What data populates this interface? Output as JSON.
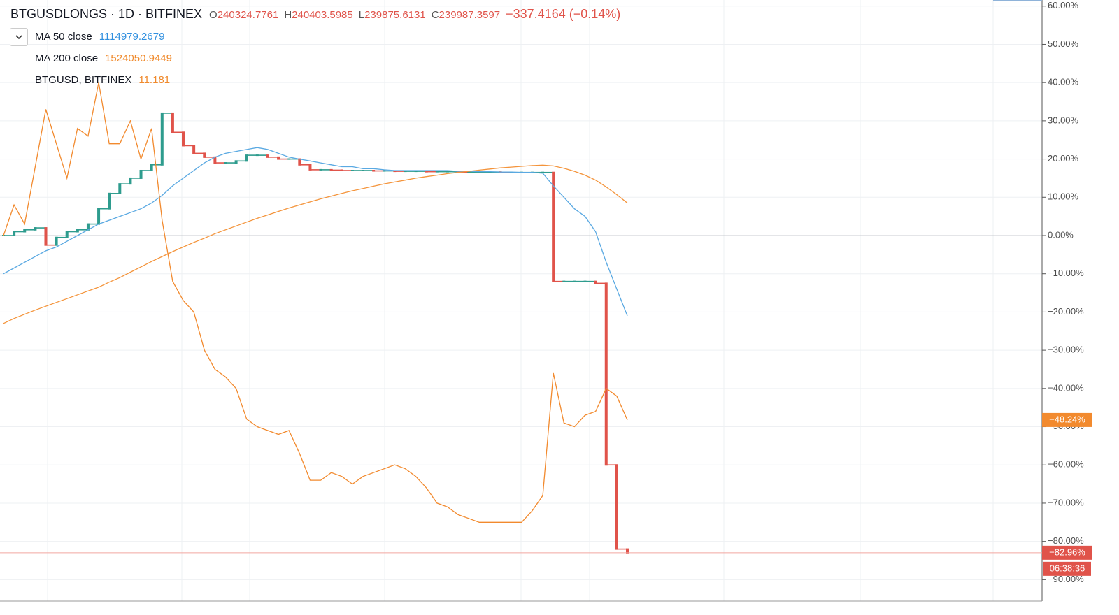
{
  "chart_data": {
    "type": "line",
    "title": "BTGUSDLONGS · 1D · BITFINEX",
    "ohlc": [
      {
        "label": "O",
        "value": "240324.7761"
      },
      {
        "label": "H",
        "value": "240403.5985"
      },
      {
        "label": "L",
        "value": "239875.6131"
      },
      {
        "label": "C",
        "value": "239987.3597"
      }
    ],
    "change": "−337.4164 (−0.14%)",
    "ylim": [
      -95.6,
      61.6
    ],
    "yticks": [
      {
        "value": 60,
        "label": "60.00%"
      },
      {
        "value": 50,
        "label": "50.00%"
      },
      {
        "value": 40,
        "label": "40.00%"
      },
      {
        "value": 30,
        "label": "30.00%"
      },
      {
        "value": 20,
        "label": "20.00%"
      },
      {
        "value": 10,
        "label": "10.00%"
      },
      {
        "value": 0,
        "label": "0.00%"
      },
      {
        "value": -10,
        "label": "−10.00%"
      },
      {
        "value": -20,
        "label": "−20.00%"
      },
      {
        "value": -30,
        "label": "−30.00%"
      },
      {
        "value": -40,
        "label": "−40.00%"
      },
      {
        "value": -50,
        "label": "−50.00%"
      },
      {
        "value": -60,
        "label": "−60.00%"
      },
      {
        "value": -70,
        "label": "−70.00%"
      },
      {
        "value": -80,
        "label": "−80.00%"
      },
      {
        "value": -90,
        "label": "−90.00%"
      }
    ],
    "grid": true,
    "series": [
      {
        "style": "candles",
        "up_color": "#2e9c8e",
        "down_color": "#e0534a",
        "tag": "−82.96%",
        "timer": "06:38:36",
        "values": [
          0,
          1,
          1.5,
          2,
          -2.5,
          -0.5,
          1,
          1.5,
          3,
          7,
          11,
          13.5,
          15,
          17,
          18.5,
          32,
          27,
          23.5,
          21.5,
          20.5,
          19,
          19,
          19.5,
          21,
          21,
          20.5,
          20,
          20,
          18.5,
          17.2,
          17.2,
          17.1,
          17,
          17,
          17,
          16.9,
          16.9,
          16.8,
          16.8,
          16.8,
          16.7,
          16.7,
          16.7,
          16.6,
          16.6,
          16.6,
          16.6,
          16.5,
          16.5,
          16.5,
          16.5,
          16.5,
          -12,
          -12,
          -12,
          -12,
          -12.5,
          -60,
          -82,
          -82.96
        ]
      },
      {
        "style": "line",
        "name": "MA 50 close",
        "legend_value": "1114979.2679",
        "color": "#5aa9e2",
        "legend_color": "#2f8fdf",
        "values": [
          -10,
          -8.5,
          -7,
          -5.5,
          -4,
          -3,
          -1.5,
          0,
          1.5,
          3,
          4,
          5,
          6,
          7,
          8.5,
          10.5,
          13,
          15,
          17,
          19,
          20.5,
          21.5,
          22,
          22.5,
          23,
          22.5,
          21.5,
          20.5,
          20,
          19.5,
          19,
          18.5,
          18,
          18,
          17.5,
          17.5,
          17.2,
          17,
          17,
          17,
          17,
          17,
          17,
          16.8,
          16.8,
          16.7,
          16.7,
          16.6,
          16.6,
          16.5,
          16.5,
          16.3,
          13,
          10,
          7,
          5,
          1,
          -7,
          -14,
          -21
        ]
      },
      {
        "style": "line",
        "name": "MA 200 close",
        "legend_value": "1524050.9449",
        "color": "#f4943b",
        "legend_color": "#f08a2c",
        "values": [
          -23,
          -21.7,
          -20.6,
          -19.5,
          -18.5,
          -17.5,
          -16.5,
          -15.5,
          -14.5,
          -13.5,
          -12.2,
          -11,
          -9.6,
          -8.2,
          -6.8,
          -5.5,
          -4.2,
          -3,
          -1.8,
          -0.7,
          0.5,
          1.5,
          2.5,
          3.5,
          4.5,
          5.4,
          6.3,
          7.2,
          8,
          8.8,
          9.6,
          10.3,
          11,
          11.7,
          12.3,
          12.9,
          13.5,
          14,
          14.5,
          15,
          15.4,
          15.8,
          16.2,
          16.5,
          16.8,
          17.1,
          17.4,
          17.7,
          17.9,
          18.1,
          18.3,
          18.4,
          18.2,
          17.6,
          16.8,
          15.8,
          14.5,
          12.7,
          10.7,
          8.5
        ]
      },
      {
        "style": "line",
        "name": "BTGUSD, BITFINEX",
        "legend_value": "11.181",
        "color": "#f28a2e",
        "legend_color": "#f08a2c",
        "tag": "−48.24%",
        "values": [
          0,
          8,
          3,
          18,
          33,
          24,
          15,
          28,
          26,
          40,
          24,
          24,
          30,
          20,
          28,
          4,
          -12,
          -17,
          -20,
          -30,
          -35,
          -37,
          -40,
          -48,
          -50,
          -51,
          -52,
          -51,
          -57,
          -64,
          -64,
          -62,
          -63,
          -65,
          -63,
          -62,
          -61,
          -60,
          -61,
          -63,
          -66,
          -70,
          -71,
          -73,
          -74,
          -75,
          -75,
          -75,
          -75,
          -75,
          -72,
          -68,
          -36,
          -49,
          -50,
          -47,
          -46,
          -40,
          -42,
          -48.24
        ]
      }
    ]
  }
}
